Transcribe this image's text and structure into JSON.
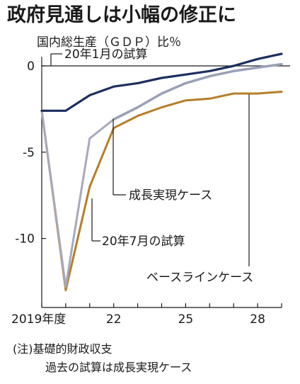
{
  "chart_data": {
    "type": "line",
    "title": "政府見通しは小幅の修正に",
    "subtitle": "国内総生産（ＧＤＰ）比％",
    "x_tick_labels": [
      "2019年度",
      "22",
      "25",
      "28"
    ],
    "x_tick_values": [
      2019,
      2022,
      2025,
      2028
    ],
    "y_tick_labels": [
      "0",
      "-5",
      "-10"
    ],
    "y_tick_values": [
      0,
      -5,
      -10
    ],
    "xlim": [
      2019,
      2029
    ],
    "ylim": [
      -14,
      1
    ],
    "grid": false,
    "x": [
      2019,
      2020,
      2021,
      2022,
      2023,
      2024,
      2025,
      2026,
      2027,
      2028,
      2029
    ],
    "series": [
      {
        "name": "20年1月の試算",
        "color": "#1c2f5e",
        "dashed": false,
        "values": [
          -2.6,
          -2.6,
          -1.7,
          -1.2,
          -1.0,
          -0.7,
          -0.5,
          -0.3,
          0.0,
          0.4,
          0.7
        ]
      },
      {
        "name": "20年7月の試算",
        "color": "#a8a8bc",
        "dashed": false,
        "values": [
          -2.6,
          -12.8,
          -4.2,
          -3.1,
          null,
          null,
          null,
          null,
          null,
          null,
          null
        ]
      },
      {
        "name": "成長実現ケース",
        "color": "#5a8ab0",
        "dashed": true,
        "values": [
          null,
          null,
          null,
          -3.1,
          -2.4,
          -1.6,
          -1.0,
          -0.6,
          -0.3,
          -0.1,
          0.1
        ]
      },
      {
        "name": "成長実現ケース_overlay",
        "color": "#9aa0b6",
        "dashed": false,
        "values": [
          null,
          null,
          null,
          -3.1,
          -2.4,
          -1.6,
          -1.0,
          -0.6,
          -0.3,
          -0.1,
          0.1
        ]
      },
      {
        "name": "ベースラインケース",
        "color": "#b57e2a",
        "dashed": false,
        "values": [
          -2.6,
          -13.0,
          -7.0,
          -3.6,
          -2.9,
          -2.4,
          -2.0,
          -1.9,
          -1.6,
          -1.6,
          -1.5
        ]
      }
    ],
    "annotations": [
      {
        "text": "20年1月の試算"
      },
      {
        "text": "成長実現ケース"
      },
      {
        "text": "20年7月の試算"
      },
      {
        "text": "ベースラインケース"
      }
    ],
    "note_line1": "(注)基礎的財政収支",
    "note_line2": "過去の試算は成長実現ケース"
  }
}
